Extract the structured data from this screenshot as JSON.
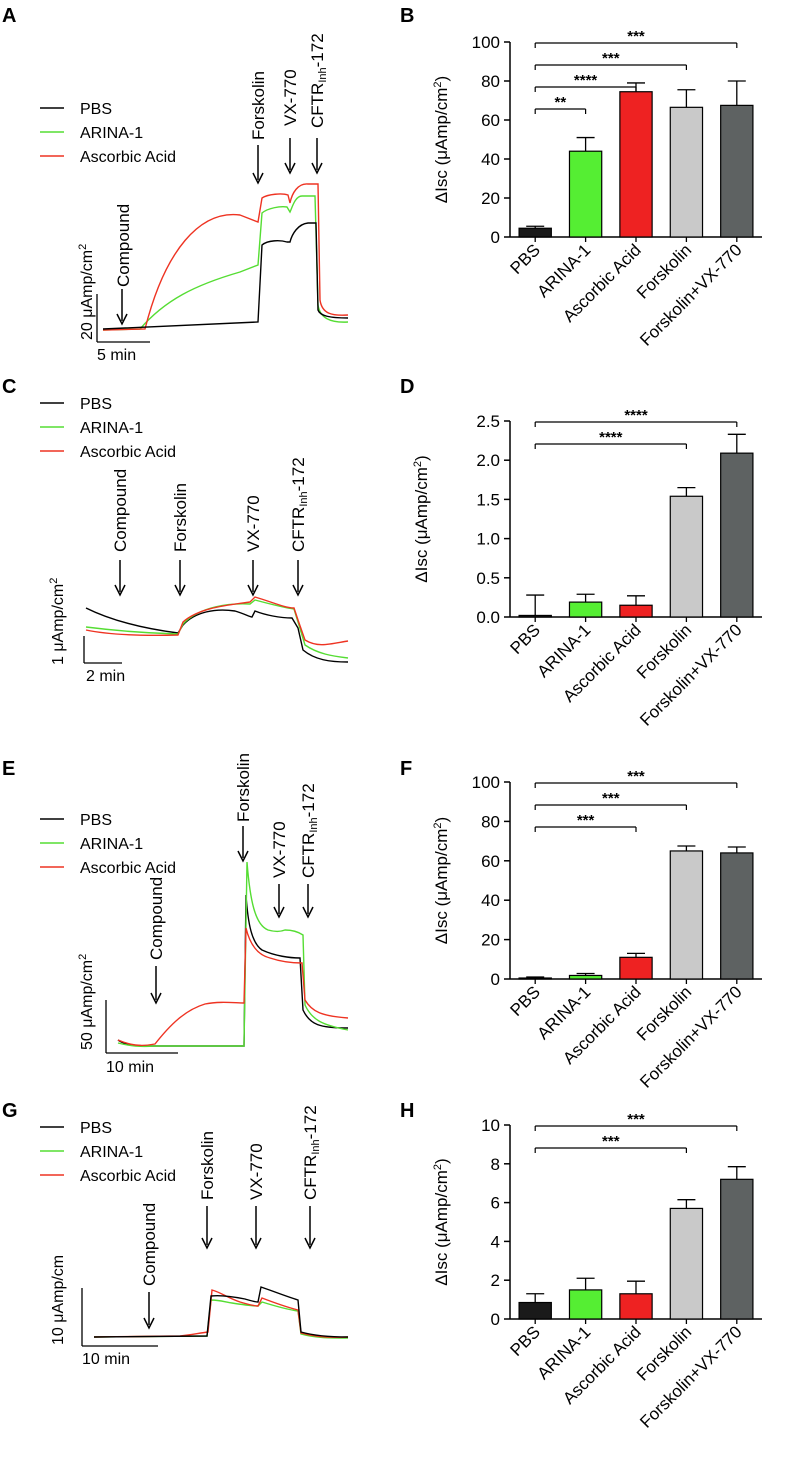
{
  "figure": {
    "legend": [
      {
        "label": "PBS",
        "color": "#000000"
      },
      {
        "label": "ARINA-1",
        "color": "#55dd33"
      },
      {
        "label": "Ascorbic Acid",
        "color": "#ee3322"
      }
    ],
    "bar_colors": [
      "#1a1a1a",
      "#55ee33",
      "#ee2222",
      "#c9c9c9",
      "#5e6262"
    ],
    "categories": [
      "PBS",
      "ARINA-1",
      "Ascorbic Acid",
      "Forskolin",
      "Forskolin+VX-770"
    ],
    "ylabel_prefix": "ΔIsc (μAmp/cm",
    "ylabel_sup": "2",
    "ylabel_suffix": ")",
    "cftr_base": "CFTR",
    "cftr_sub": "Inh",
    "cftr_suffix": "-172",
    "compound_label": "Compound",
    "forskolin_label": "Forskolin",
    "vx770_label": "VX-770"
  },
  "trace_panels": [
    {
      "label": "A",
      "scale_y_text": "20 μAmp/cm",
      "scale_y_sup": "2",
      "scale_x_text": "5 min"
    },
    {
      "label": "C",
      "scale_y_text": "1 μAmp/cm",
      "scale_y_sup": "2",
      "scale_x_text": "2 min"
    },
    {
      "label": "E",
      "scale_y_text": "50 μAmp/cm",
      "scale_y_sup": "2",
      "scale_x_text": "10 min"
    },
    {
      "label": "G",
      "scale_y_text": "10 μAmp/cm",
      "scale_y_sup": "",
      "scale_x_text": "10 min"
    }
  ],
  "chart_data": [
    {
      "panel": "B",
      "type": "bar",
      "title": "",
      "categories": [
        "PBS",
        "ARINA-1",
        "Ascorbic Acid",
        "Forskolin",
        "Forskolin+VX-770"
      ],
      "values": [
        4.5,
        44,
        74.5,
        66.5,
        67.5
      ],
      "errors": [
        1,
        7,
        4.5,
        9,
        12.5
      ],
      "ylim": [
        0,
        100
      ],
      "yticks": [
        "0",
        "20",
        "40",
        "60",
        "80",
        "100"
      ],
      "significance": [
        {
          "from": 0,
          "to": 1,
          "label": "**"
        },
        {
          "from": 0,
          "to": 2,
          "label": "****"
        },
        {
          "from": 0,
          "to": 3,
          "label": "***"
        },
        {
          "from": 0,
          "to": 4,
          "label": "***"
        }
      ]
    },
    {
      "panel": "D",
      "type": "bar",
      "title": "",
      "categories": [
        "PBS",
        "ARINA-1",
        "Ascorbic Acid",
        "Forskolin",
        "Forskolin+VX-770"
      ],
      "values": [
        0.02,
        0.19,
        0.15,
        1.54,
        2.09
      ],
      "errors": [
        0.26,
        0.1,
        0.12,
        0.11,
        0.24
      ],
      "ylim": [
        0,
        2.5
      ],
      "yticks": [
        "0.0",
        "0.5",
        "1.0",
        "1.5",
        "2.0",
        "2.5"
      ],
      "significance": [
        {
          "from": 0,
          "to": 3,
          "label": "****"
        },
        {
          "from": 0,
          "to": 4,
          "label": "****"
        }
      ]
    },
    {
      "panel": "F",
      "type": "bar",
      "title": "",
      "categories": [
        "PBS",
        "ARINA-1",
        "Ascorbic Acid",
        "Forskolin",
        "Forskolin+VX-770"
      ],
      "values": [
        0.5,
        1.8,
        11,
        65,
        64
      ],
      "errors": [
        0.5,
        1,
        2,
        2.5,
        3
      ],
      "ylim": [
        0,
        100
      ],
      "yticks": [
        "0",
        "20",
        "40",
        "60",
        "80",
        "100"
      ],
      "significance": [
        {
          "from": 0,
          "to": 2,
          "label": "***"
        },
        {
          "from": 0,
          "to": 3,
          "label": "***"
        },
        {
          "from": 0,
          "to": 4,
          "label": "***"
        }
      ]
    },
    {
      "panel": "H",
      "type": "bar",
      "title": "",
      "categories": [
        "PBS",
        "ARINA-1",
        "Ascorbic Acid",
        "Forskolin",
        "Forskolin+VX-770"
      ],
      "values": [
        0.85,
        1.5,
        1.3,
        5.7,
        7.2
      ],
      "errors": [
        0.45,
        0.6,
        0.65,
        0.45,
        0.65
      ],
      "ylim": [
        0,
        10
      ],
      "yticks": [
        "0",
        "2",
        "4",
        "6",
        "8",
        "10"
      ],
      "significance": [
        {
          "from": 0,
          "to": 3,
          "label": "***"
        },
        {
          "from": 0,
          "to": 4,
          "label": "***"
        }
      ]
    }
  ]
}
